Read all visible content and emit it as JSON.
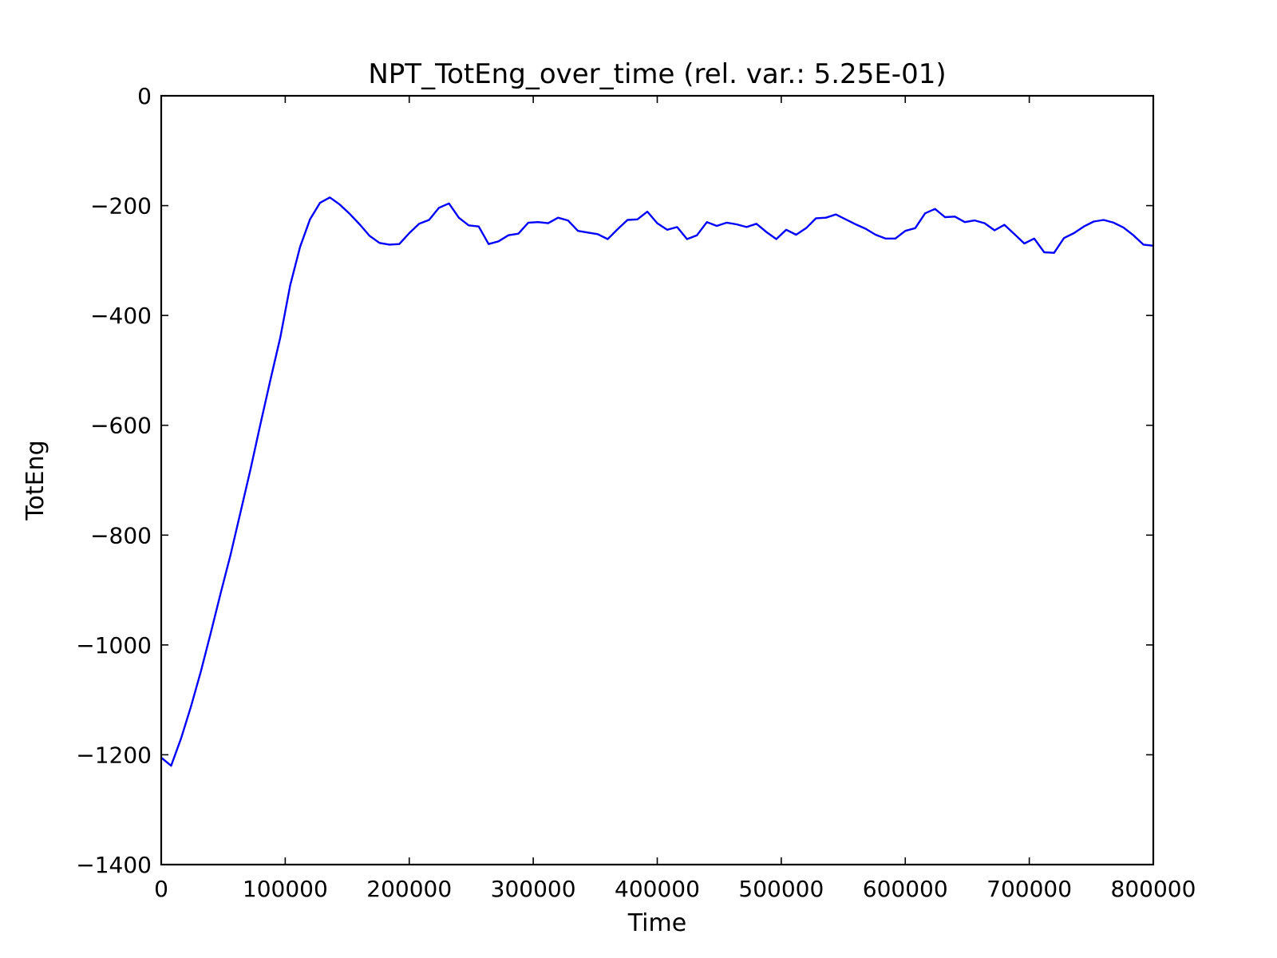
{
  "chart_data": {
    "type": "line",
    "title": "NPT_TotEng_over_time (rel. var.: 5.25E-01)",
    "xlabel": "Time",
    "ylabel": "TotEng",
    "xlim": [
      0,
      800000
    ],
    "ylim": [
      -1400,
      0
    ],
    "xticks": [
      0,
      100000,
      200000,
      300000,
      400000,
      500000,
      600000,
      700000,
      800000
    ],
    "xtick_labels": [
      "0",
      "100000",
      "200000",
      "300000",
      "400000",
      "500000",
      "600000",
      "700000",
      "800000"
    ],
    "yticks": [
      0,
      -200,
      -400,
      -600,
      -800,
      -1000,
      -1200,
      -1400
    ],
    "ytick_labels": [
      "0",
      "−200",
      "−400",
      "−600",
      "−800",
      "−1000",
      "−1200",
      "−1400"
    ],
    "grid": false,
    "series": [
      {
        "color": "#0000ff",
        "x": [
          0,
          8000,
          16000,
          24000,
          32000,
          40000,
          48000,
          56000,
          64000,
          72000,
          80000,
          88000,
          96000,
          104000,
          112000,
          120000,
          128000,
          136000,
          144000,
          152000,
          160000,
          168000,
          176000,
          184000,
          192000,
          200000,
          208000,
          216000,
          224000,
          232000,
          240000,
          248000,
          256000,
          264000,
          272000,
          280000,
          288000,
          296000,
          304000,
          312000,
          320000,
          328000,
          336000,
          344000,
          352000,
          360000,
          368000,
          376000,
          384000,
          392000,
          400000,
          408000,
          416000,
          424000,
          432000,
          440000,
          448000,
          456000,
          464000,
          472000,
          480000,
          488000,
          496000,
          504000,
          512000,
          520000,
          528000,
          536000,
          544000,
          552000,
          560000,
          568000,
          576000,
          584000,
          592000,
          600000,
          608000,
          616000,
          624000,
          632000,
          640000,
          648000,
          656000,
          664000,
          672000,
          680000,
          688000,
          696000,
          704000,
          712000,
          720000,
          728000,
          736000,
          744000,
          752000,
          760000,
          768000,
          776000,
          784000,
          792000,
          800000
        ],
        "y": [
          -1205,
          -1220,
          -1170,
          -1112,
          -1048,
          -978,
          -905,
          -835,
          -758,
          -680,
          -598,
          -518,
          -440,
          -345,
          -275,
          -225,
          -195,
          -185,
          -198,
          -215,
          -234,
          -255,
          -268,
          -271,
          -270,
          -250,
          -233,
          -226,
          -204,
          -196,
          -222,
          -236,
          -238,
          -270,
          -265,
          -254,
          -251,
          -231,
          -230,
          -232,
          -222,
          -227,
          -246,
          -249,
          -252,
          -261,
          -243,
          -226,
          -225,
          -211,
          -232,
          -244,
          -239,
          -261,
          -254,
          -230,
          -237,
          -231,
          -234,
          -239,
          -233,
          -248,
          -261,
          -244,
          -253,
          -241,
          -223,
          -222,
          -216,
          -225,
          -234,
          -242,
          -253,
          -260,
          -260,
          -246,
          -241,
          -214,
          -206,
          -221,
          -220,
          -230,
          -227,
          -232,
          -245,
          -235,
          -252,
          -269,
          -260,
          -285,
          -286,
          -259,
          -250,
          -238,
          -229,
          -226,
          -231,
          -240,
          -254,
          -271,
          -273
        ]
      }
    ]
  }
}
